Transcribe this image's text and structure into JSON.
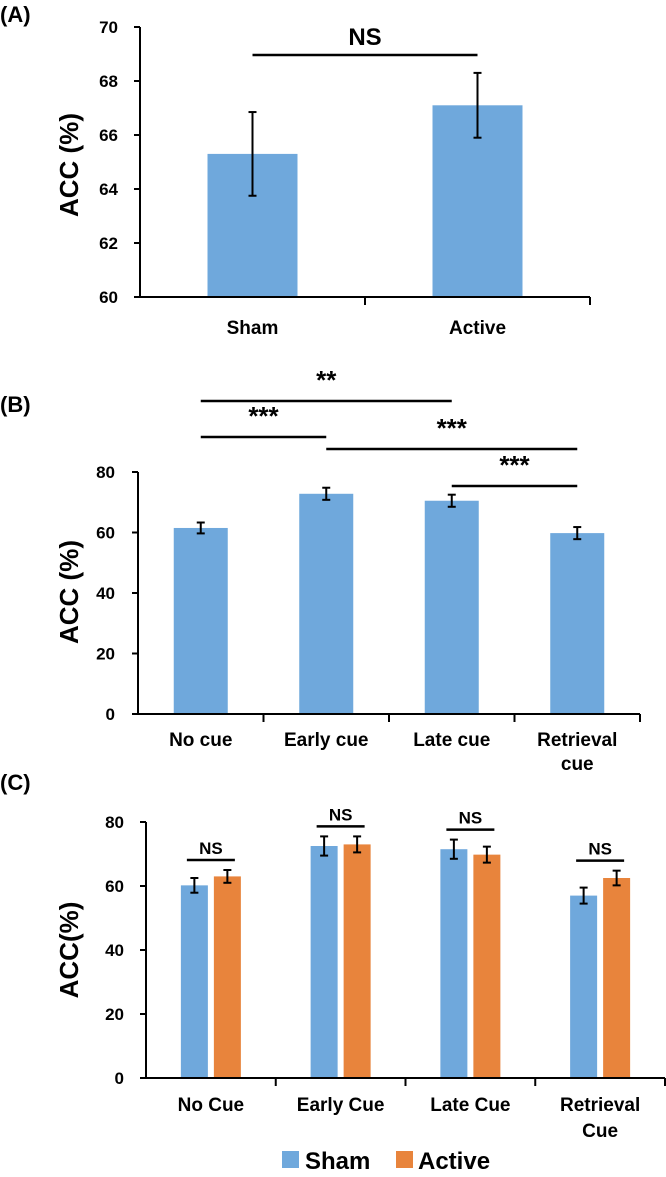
{
  "chart_data": [
    {
      "panel": "(A)",
      "type": "bar",
      "ylabel": "ACC (%)",
      "ylim": [
        60,
        70
      ],
      "yticks": [
        60,
        62,
        64,
        66,
        68,
        70
      ],
      "categories": [
        "Sham",
        "Active"
      ],
      "values": [
        65.3,
        67.1
      ],
      "errors": [
        1.55,
        1.2
      ],
      "color": "#6fa8dc",
      "significance": [
        {
          "from": 0,
          "to": 1,
          "label": "NS"
        }
      ]
    },
    {
      "panel": "(B)",
      "type": "bar",
      "ylabel": "ACC  (%)",
      "ylim": [
        0,
        80
      ],
      "yticks": [
        0,
        20,
        40,
        60,
        80
      ],
      "categories": [
        [
          "No cue"
        ],
        [
          "Early cue"
        ],
        [
          "Late cue"
        ],
        [
          "Retrieval",
          "cue"
        ]
      ],
      "values": [
        61.5,
        72.8,
        70.5,
        59.8
      ],
      "errors": [
        1.8,
        2.0,
        2.0,
        2.0
      ],
      "color": "#6fa8dc",
      "significance": [
        {
          "from": 0,
          "to": 2,
          "label": "**"
        },
        {
          "from": 0,
          "to": 1,
          "label": "***"
        },
        {
          "from": 1,
          "to": 3,
          "label": "***"
        },
        {
          "from": 2,
          "to": 3,
          "label": "***"
        }
      ]
    },
    {
      "panel": "(C)",
      "type": "bar",
      "ylabel": "ACC(%)",
      "ylim": [
        0,
        80
      ],
      "yticks": [
        0,
        20,
        40,
        60,
        80
      ],
      "categories": [
        [
          "No Cue"
        ],
        [
          "Early Cue"
        ],
        [
          "Late Cue"
        ],
        [
          "Retrieval",
          "Cue"
        ]
      ],
      "series": [
        {
          "name": "Sham",
          "color": "#6fa8dc",
          "values": [
            60.2,
            72.5,
            71.5,
            57.0
          ],
          "errors": [
            2.3,
            3.0,
            3.0,
            2.5
          ]
        },
        {
          "name": "Active",
          "color": "#e8843c",
          "values": [
            63.0,
            73.0,
            69.8,
            62.5
          ],
          "errors": [
            2.0,
            2.5,
            2.5,
            2.3
          ]
        }
      ],
      "significance_label": "NS",
      "legend": {
        "position": "bottom",
        "entries": [
          "Sham",
          "Active"
        ]
      }
    }
  ]
}
